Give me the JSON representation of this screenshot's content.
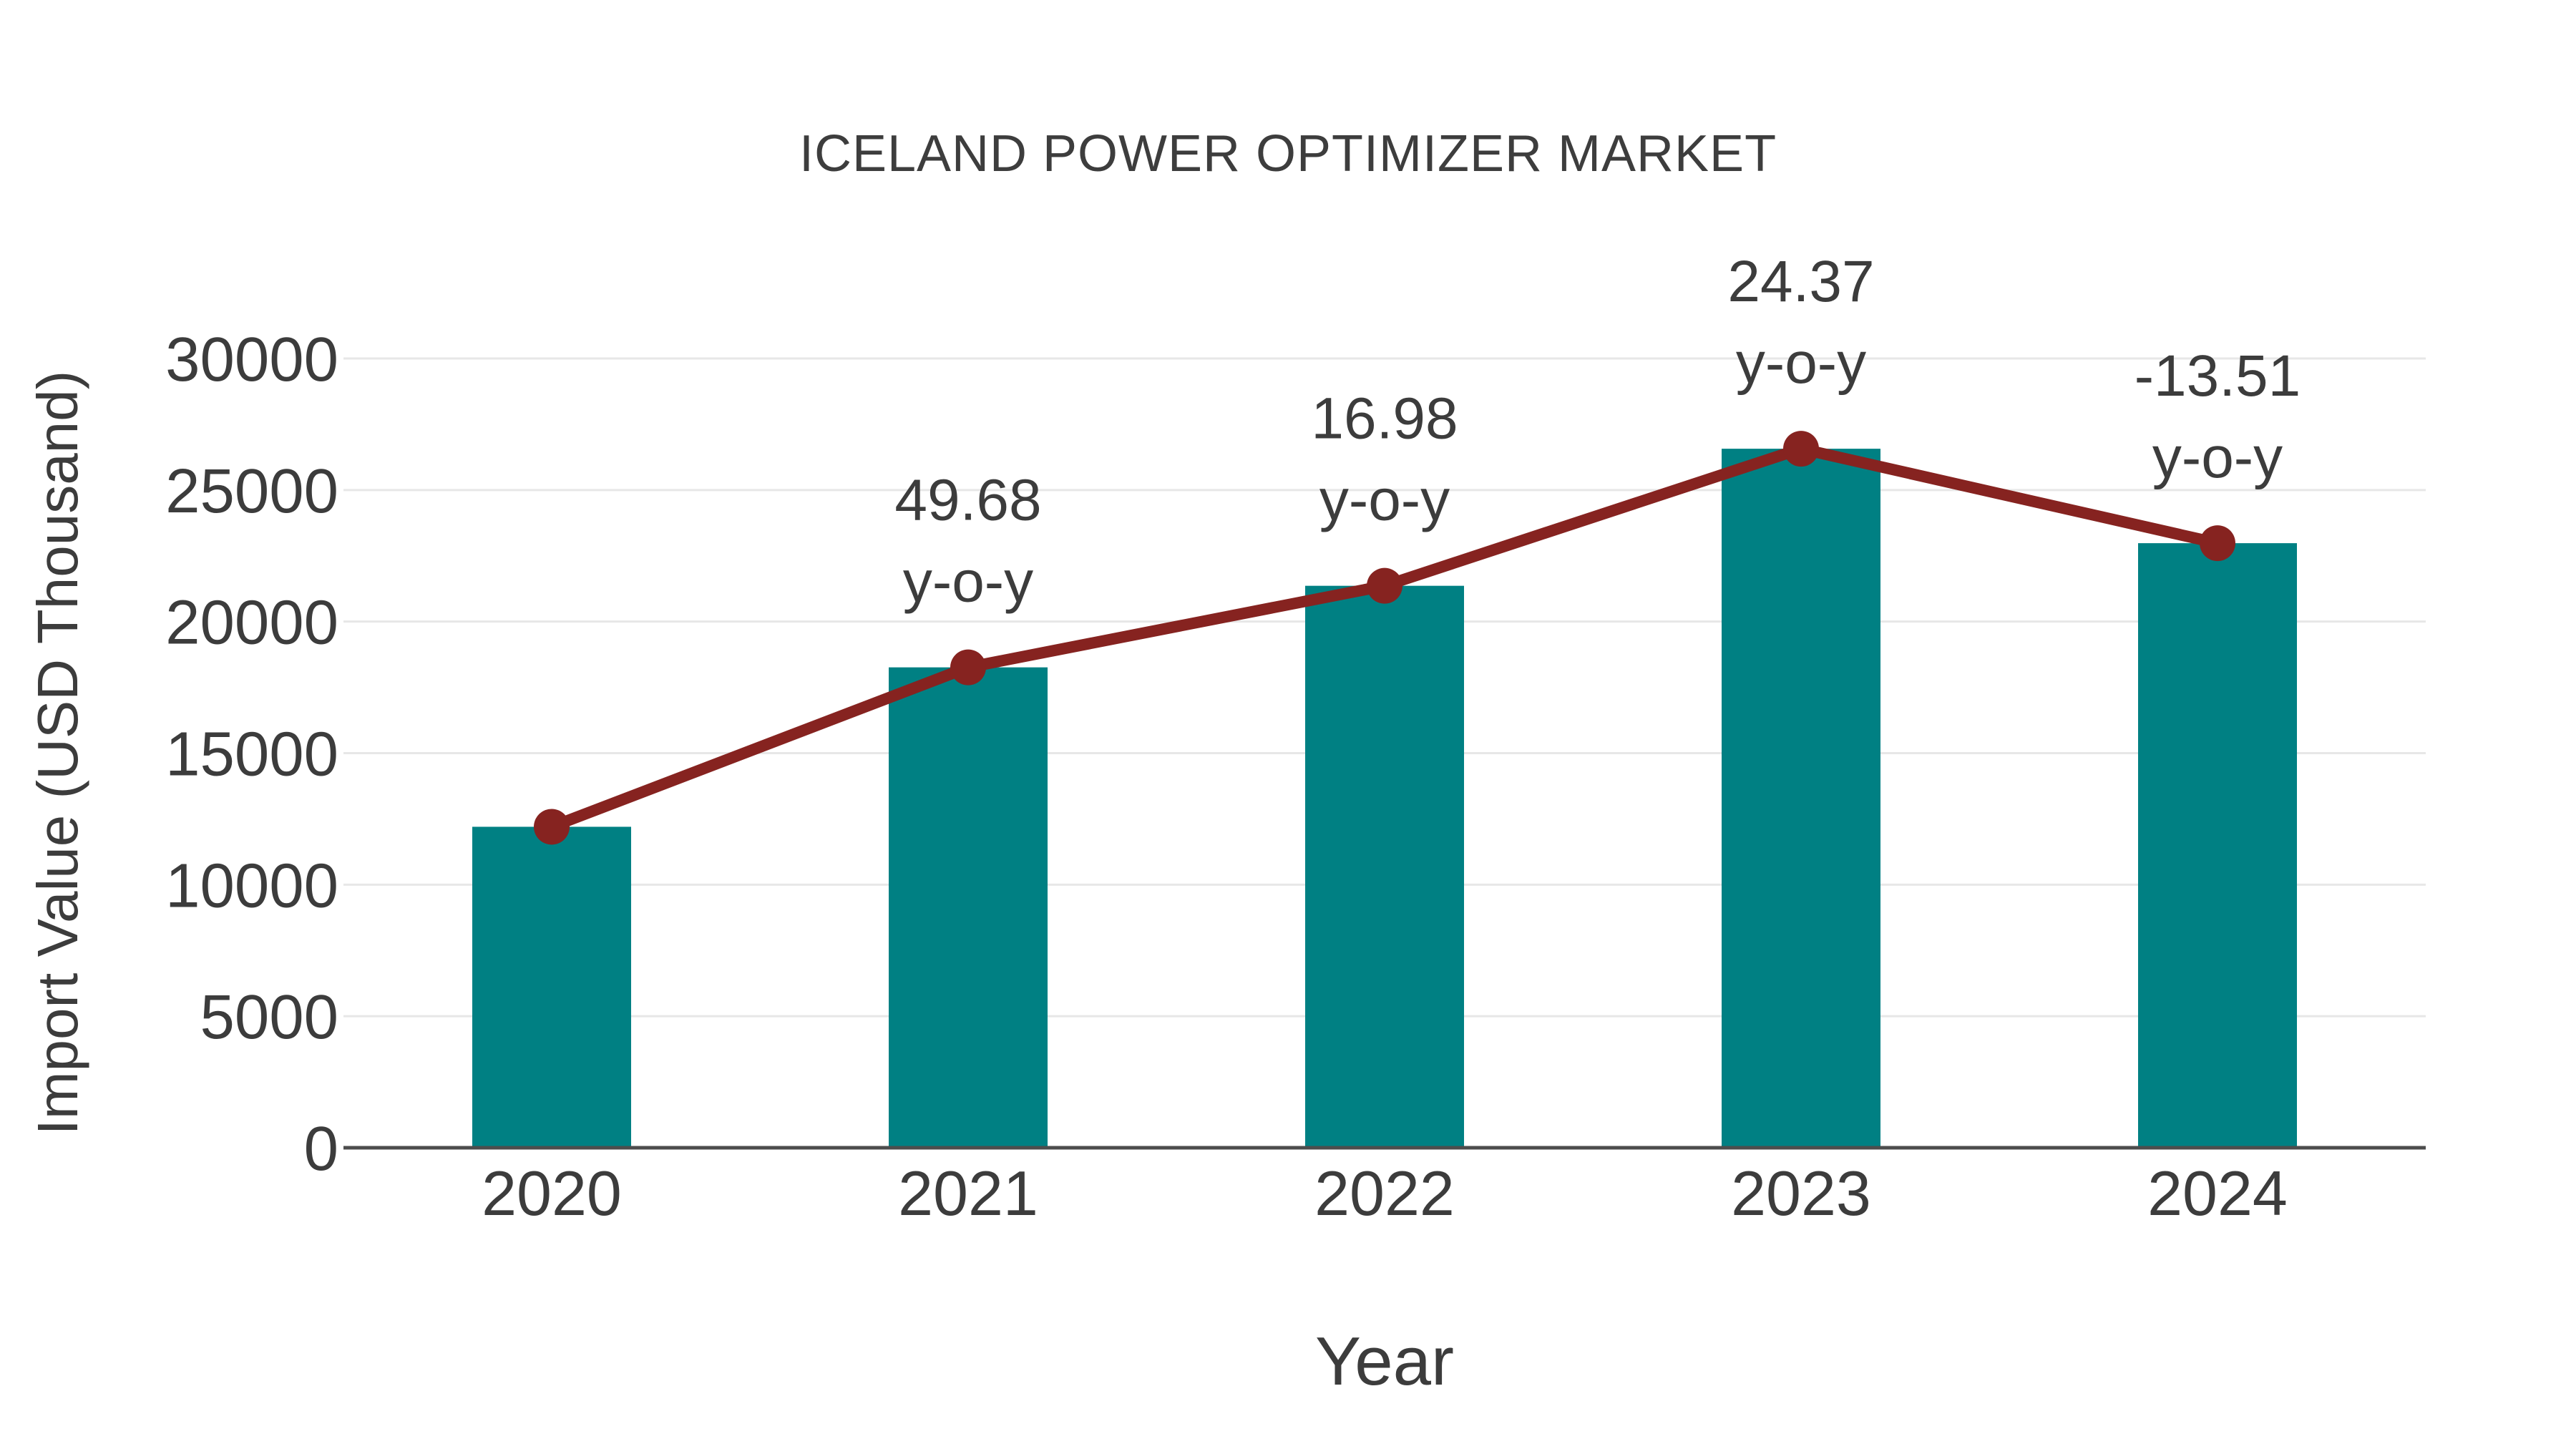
{
  "chart_data": {
    "type": "bar",
    "title": "ICELAND POWER OPTIMIZER MARKET",
    "xlabel": "Year",
    "ylabel": "Import Value (USD Thousand)",
    "categories": [
      "2020",
      "2021",
      "2022",
      "2023",
      "2024"
    ],
    "series": [
      {
        "name": "import-value-bars",
        "type": "bar",
        "color": "#008083",
        "values": [
          12200,
          18260,
          21360,
          26570,
          22980
        ]
      },
      {
        "name": "yoy-trend-line",
        "type": "line",
        "color": "#862320",
        "values": [
          12200,
          18260,
          21360,
          26570,
          22980
        ]
      }
    ],
    "annotations": [
      {
        "category": "2021",
        "lines": [
          "49.68",
          "y-o-y"
        ]
      },
      {
        "category": "2022",
        "lines": [
          "16.98",
          "y-o-y"
        ]
      },
      {
        "category": "2023",
        "lines": [
          "24.37",
          "y-o-y"
        ]
      },
      {
        "category": "2024",
        "lines": [
          "-13.51",
          "y-o-y"
        ]
      }
    ],
    "yticks": [
      0,
      5000,
      10000,
      15000,
      20000,
      25000,
      30000
    ],
    "ylim": [
      0,
      30000
    ],
    "grid": true,
    "legend_position": "none",
    "colors": {
      "text": "#3c3c3c",
      "grid": "#e7e7e7",
      "axis": "#4d4d4d",
      "background": "#ffffff"
    }
  }
}
